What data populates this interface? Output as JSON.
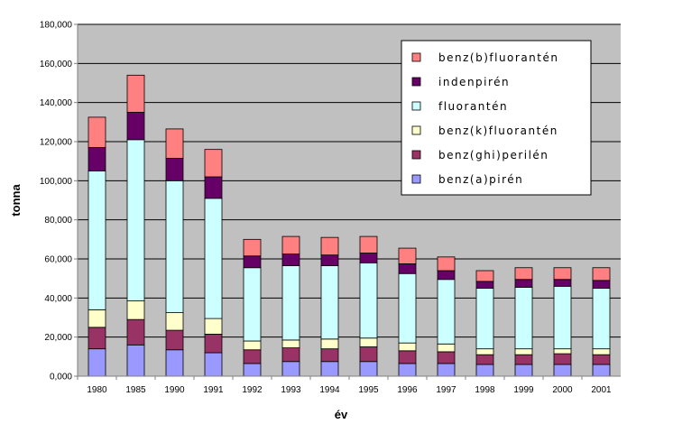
{
  "chart_data": {
    "type": "bar",
    "stacked": true,
    "title": "",
    "xlabel": "év",
    "ylabel": "tonna",
    "ylim": [
      0,
      180000
    ],
    "yticks": [
      0,
      20000,
      40000,
      60000,
      80000,
      100000,
      120000,
      140000,
      160000,
      180000
    ],
    "ytick_labels": [
      "0,000",
      "20,000",
      "40,000",
      "60,000",
      "80,000",
      "100,000",
      "120,000",
      "140,000",
      "160,000",
      "180,000"
    ],
    "grid": true,
    "legend_position": "top-right",
    "categories": [
      "1980",
      "1985",
      "1990",
      "1991",
      "1992",
      "1993",
      "1994",
      "1995",
      "1996",
      "1997",
      "1998",
      "1999",
      "2000",
      "2001"
    ],
    "series": [
      {
        "name": "benz(a)pirén",
        "color": "#9999ff",
        "values": [
          14000,
          16000,
          13500,
          12000,
          6500,
          7500,
          7500,
          7500,
          6500,
          6500,
          6000,
          6000,
          6000,
          6000
        ]
      },
      {
        "name": "benz(ghi)perilén",
        "color": "#993366",
        "values": [
          11000,
          13000,
          10000,
          9500,
          7000,
          7000,
          6500,
          7500,
          6500,
          6000,
          5000,
          5000,
          5500,
          5000
        ]
      },
      {
        "name": "benz(k)fluorantén",
        "color": "#ffffcc",
        "values": [
          9000,
          9500,
          9000,
          8000,
          4500,
          4000,
          5000,
          4500,
          4000,
          4000,
          3000,
          3000,
          2500,
          3000
        ]
      },
      {
        "name": "fluorantén",
        "color": "#ccffff",
        "values": [
          71000,
          82500,
          67500,
          61500,
          37500,
          38000,
          37500,
          38500,
          35500,
          33000,
          31000,
          31500,
          32000,
          31000
        ]
      },
      {
        "name": "indenpirén",
        "color": "#660066",
        "values": [
          12000,
          14000,
          11500,
          11000,
          6000,
          6000,
          5500,
          5000,
          5000,
          4500,
          3500,
          4000,
          3500,
          4000
        ]
      },
      {
        "name": "benz(b)fluorantén",
        "color": "#ff8080",
        "values": [
          15500,
          19000,
          15000,
          14000,
          8500,
          9000,
          9000,
          8500,
          8000,
          7000,
          5500,
          6000,
          6000,
          6500
        ]
      }
    ],
    "legend_order": [
      "benz(b)fluorantén",
      "indenpirén",
      "fluorantén",
      "benz(k)fluorantén",
      "benz(ghi)perilén",
      "benz(a)pirén"
    ],
    "colors": {
      "plot_background": "#c0c0c0",
      "gridline": "#000000"
    }
  }
}
